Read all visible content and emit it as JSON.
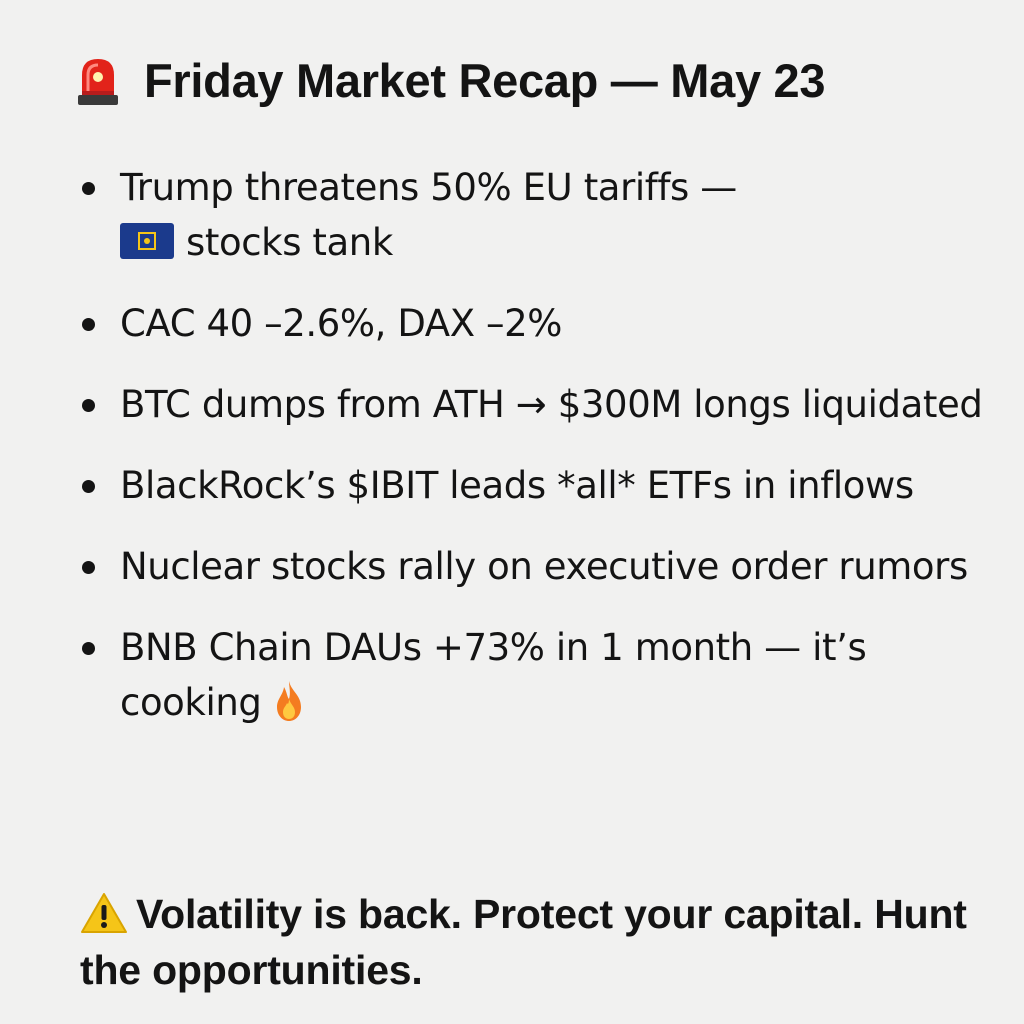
{
  "header": {
    "icon": "siren-icon",
    "title": "Friday Market Recap — May 23"
  },
  "bullets": [
    {
      "text_before": "Trump threatens 50% EU tariffs —",
      "icon": "eu-flag-icon",
      "text_after": "stocks tank"
    },
    {
      "text": "CAC 40 –2.6%, DAX –2%"
    },
    {
      "text": "BTC dumps from ATH → $300M longs liquidated"
    },
    {
      "text": "BlackRock’s $IBIT leads *all* ETFs in inflows"
    },
    {
      "text": "Nuclear stocks rally on executive order rumors"
    },
    {
      "text": "BNB Chain DAUs +73% in 1 month — it’s cooking",
      "icon": "fire-icon"
    }
  ],
  "footer": {
    "icon": "warning-icon",
    "text": "Volatility is back. Protect your capital. Hunt the opportunities."
  },
  "colors": {
    "background": "#f1f1f0",
    "text": "#141414",
    "siren_red": "#e2231a",
    "flag_blue": "#1b3a8c",
    "warning_yellow": "#f5c518",
    "fire_orange": "#f47c20"
  }
}
